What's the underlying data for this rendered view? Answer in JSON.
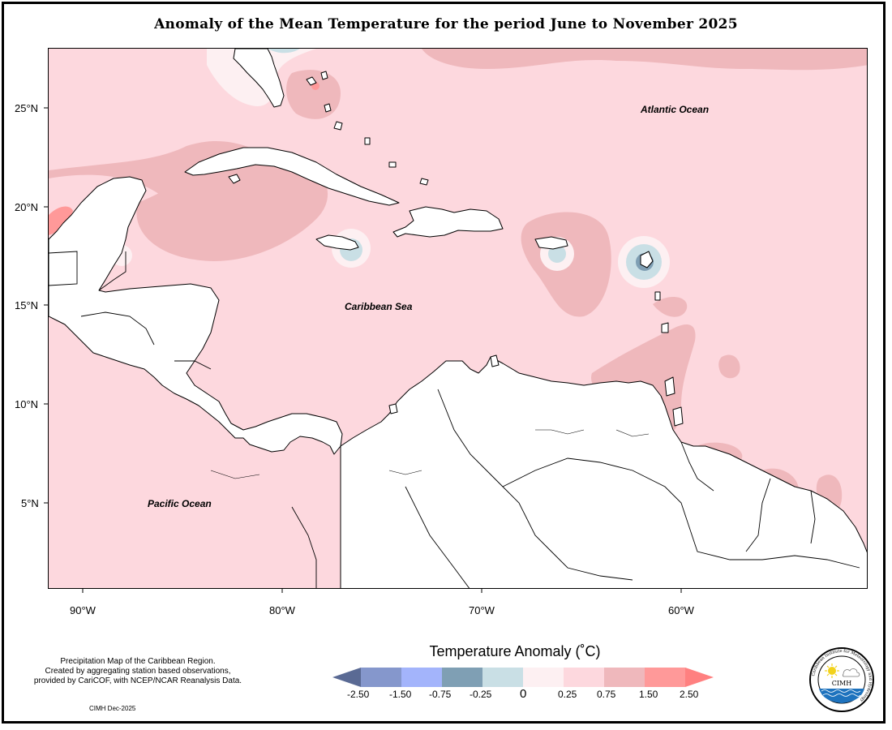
{
  "title": "Anomaly of the Mean Temperature for the period June to November 2025",
  "map": {
    "ocean_labels": {
      "atlantic": "Atlantic Ocean",
      "caribbean": "Caribbean Sea",
      "pacific": "Pacific Ocean"
    },
    "lat_ticks": [
      "25°N",
      "20°N",
      "15°N",
      "10°N",
      "5°N"
    ],
    "lon_ticks": [
      "90°W",
      "80°W",
      "70°W",
      "60°W"
    ],
    "colors": {
      "ocean_base": "#fdd8de",
      "anom_075_150": "#efb8bc",
      "anom_150_250": "#ff9999",
      "anom_000_025": "#fdf0f2",
      "anom_m025_000": "#c9dfe5",
      "anom_m075_m025": "#7f9fb4"
    }
  },
  "legend": {
    "title": "Temperature Anomaly (˚C)",
    "labels": [
      "-2.50",
      "-1.50",
      "-0.75",
      "-0.25",
      "0",
      "0.25",
      "0.75",
      "1.50",
      "2.50"
    ],
    "colors": [
      "#5a6a94",
      "#8597cc",
      "#a3b4fb",
      "#7f9fb4",
      "#c9dfe5",
      "#fdf0f2",
      "#fdd8de",
      "#efb8bc",
      "#ff9999",
      "#ff8080"
    ]
  },
  "credits": {
    "line1": "Precipitation Map of the Caribbean Region.",
    "line2": "Created by aggregating station based observations,",
    "line3": "provided by CariCOF, with NCEP/NCAR Reanalysis Data.",
    "date": "CIMH Dec-2025"
  },
  "logo": {
    "text": "CIMH",
    "ring_text": "Caribbean Institute for Meteorology and Hydrology",
    "icons": [
      "sun-icon",
      "cloud-icon",
      "waves-icon"
    ]
  }
}
